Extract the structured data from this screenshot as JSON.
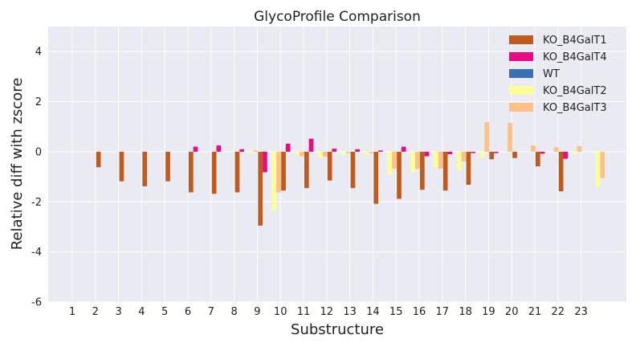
{
  "chart_data": {
    "type": "bar",
    "title": "GlycoProfile Comparison",
    "xlabel": "Substructure",
    "ylabel": "Relative diff with zscore",
    "ylim": [
      -6,
      5
    ],
    "yticks": [
      -6,
      -4,
      -2,
      0,
      2,
      4
    ],
    "categories": [
      "1",
      "2",
      "3",
      "4",
      "5",
      "6",
      "7",
      "8",
      "9",
      "10",
      "11",
      "12",
      "13",
      "14",
      "15",
      "16",
      "17",
      "18",
      "19",
      "20",
      "21",
      "22",
      "23"
    ],
    "grid": true,
    "legend_position": "top-right",
    "series": [
      {
        "name": "KO_B4GalT1",
        "color": "#c05a1e",
        "values": [
          0,
          -0.62,
          -1.18,
          -1.38,
          -1.18,
          -1.62,
          -1.68,
          -1.62,
          -2.95,
          -1.55,
          -1.45,
          -1.15,
          -1.45,
          -2.08,
          -1.88,
          -1.52,
          -1.55,
          -1.32,
          -0.3,
          -0.25,
          -0.58,
          -1.58,
          0
        ]
      },
      {
        "name": "KO_B4GalT4",
        "color": "#ea0a82",
        "values": [
          0,
          0,
          0,
          0,
          0,
          0.2,
          0.25,
          0.1,
          -0.82,
          0.32,
          0.52,
          0.12,
          0.1,
          0.05,
          0.2,
          -0.18,
          -0.1,
          -0.05,
          -0.05,
          0,
          -0.08,
          -0.28,
          0
        ]
      },
      {
        "name": "WT",
        "color": "#3a6eb5",
        "values": [
          0,
          0,
          0,
          0,
          0,
          0,
          0,
          0,
          0,
          0,
          0,
          0,
          0,
          0,
          0,
          0,
          0,
          0,
          0,
          0,
          0,
          0,
          0
        ]
      },
      {
        "name": "KO_B4GalT2",
        "color": "#ffff99",
        "values": [
          0,
          0,
          0,
          0,
          0,
          0.02,
          -0.02,
          -0.05,
          -2.35,
          -0.12,
          -0.25,
          -0.12,
          -0.12,
          -0.92,
          -0.82,
          -0.62,
          -0.72,
          -0.22,
          0,
          0,
          0,
          -0.1,
          -1.4
        ]
      },
      {
        "name": "KO_B4GalT3",
        "color": "#fdc086",
        "values": [
          0,
          0,
          0,
          0,
          0,
          0,
          0,
          0.05,
          -1.62,
          -0.18,
          -0.2,
          -0.05,
          -0.05,
          -0.68,
          -0.68,
          -0.68,
          -0.38,
          1.18,
          1.15,
          0.25,
          0.18,
          0.22,
          -1.05
        ]
      }
    ]
  }
}
